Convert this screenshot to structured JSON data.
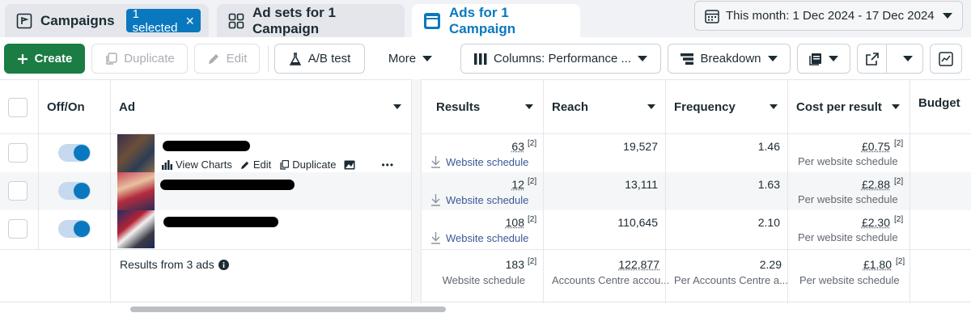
{
  "tabs": {
    "campaigns": {
      "label": "Campaigns",
      "badge": "1 selected",
      "badge_close": "×"
    },
    "adsets": {
      "label": "Ad sets for 1 Campaign"
    },
    "ads": {
      "label": "Ads for 1 Campaign"
    }
  },
  "date_range": {
    "label": "This month: 1 Dec 2024 - 17 Dec 2024"
  },
  "toolbar": {
    "create": "Create",
    "duplicate": "Duplicate",
    "edit": "Edit",
    "ab_test": "A/B test",
    "more": "More",
    "columns": "Columns: Performance ...",
    "breakdown": "Breakdown"
  },
  "columns": {
    "off_on": "Off/On",
    "ad": "Ad",
    "results": "Results",
    "reach": "Reach",
    "frequency": "Frequency",
    "cost_per_result": "Cost per result",
    "budget": "Budget"
  },
  "row_actions": {
    "view_charts": "View Charts",
    "edit": "Edit",
    "duplicate": "Duplicate",
    "more": "•••"
  },
  "rows": [
    {
      "results": "63",
      "results_sup": "[2]",
      "results_link": "Website schedule",
      "reach": "19,527",
      "frequency": "1.46",
      "cost": "£0.75",
      "cost_sup": "[2]",
      "cost_sub": "Per website schedule"
    },
    {
      "results": "12",
      "results_sup": "[2]",
      "results_link": "Website schedule",
      "reach": "13,111",
      "frequency": "1.63",
      "cost": "£2.88",
      "cost_sup": "[2]",
      "cost_sub": "Per website schedule"
    },
    {
      "results": "108",
      "results_sup": "[2]",
      "results_link": "Website schedule",
      "reach": "110,645",
      "frequency": "2.10",
      "cost": "£2.30",
      "cost_sup": "[2]",
      "cost_sub": "Per website schedule"
    }
  ],
  "summary": {
    "label": "Results from 3 ads",
    "results": "183",
    "results_sup": "[2]",
    "results_sub": "Website schedule",
    "reach": "122,877",
    "reach_sub": "Accounts Centre accou...",
    "frequency": "2.29",
    "frequency_sub": "Per Accounts Centre a...",
    "cost": "£1.80",
    "cost_sup": "[2]",
    "cost_sub": "Per website schedule"
  },
  "colors": {
    "accent": "#0a78be",
    "create_green": "#1b7c44",
    "link": "#385898"
  }
}
